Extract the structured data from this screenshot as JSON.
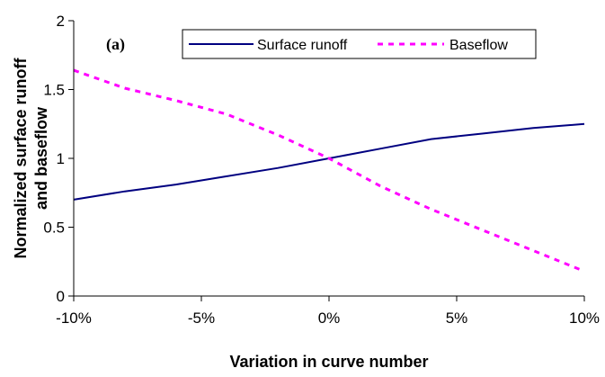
{
  "chart_data": {
    "type": "line",
    "panel_label": "(a)",
    "xlabel": "Variation in curve number",
    "ylabel_lines": [
      "Normalized surface runoff",
      "and baseflow"
    ],
    "x_ticks": [
      "-10%",
      "-5%",
      "0%",
      "5%",
      "10%"
    ],
    "y_ticks": [
      "0",
      "0.5",
      "1",
      "1.5",
      "2"
    ],
    "xlim": [
      -10,
      10
    ],
    "ylim": [
      0,
      2
    ],
    "grid": false,
    "legend_position": "top-right",
    "series": [
      {
        "name": "Surface runoff",
        "color": "#000080",
        "style": "solid",
        "x": [
          -10,
          -8,
          -6,
          -4,
          -2,
          0,
          2,
          4,
          6,
          8,
          10
        ],
        "y": [
          0.7,
          0.76,
          0.81,
          0.87,
          0.93,
          1.0,
          1.07,
          1.14,
          1.18,
          1.22,
          1.25
        ]
      },
      {
        "name": "Baseflow",
        "color": "#ff00ff",
        "style": "dashed",
        "x": [
          -10,
          -8,
          -6,
          -4,
          -2,
          0,
          2,
          4,
          6,
          8,
          10
        ],
        "y": [
          1.64,
          1.51,
          1.42,
          1.32,
          1.17,
          1.0,
          0.8,
          0.63,
          0.48,
          0.33,
          0.18
        ]
      }
    ]
  }
}
